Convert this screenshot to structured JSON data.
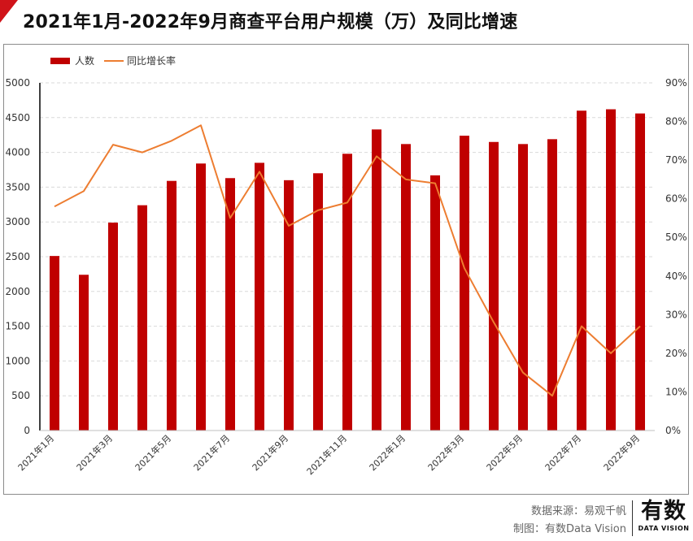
{
  "title": "2021年1月-2022年9月商查平台用户规模（万）及同比增速",
  "chart_data": {
    "type": "bar+line",
    "title": "2021年1月-2022年9月商查平台用户规模（万）及同比增速",
    "categories": [
      "2021年1月",
      "2021年2月",
      "2021年3月",
      "2021年4月",
      "2021年5月",
      "2021年6月",
      "2021年7月",
      "2021年8月",
      "2021年9月",
      "2021年10月",
      "2021年11月",
      "2021年12月",
      "2022年1月",
      "2022年2月",
      "2022年3月",
      "2022年4月",
      "2022年5月",
      "2022年6月",
      "2022年7月",
      "2022年8月",
      "2022年9月"
    ],
    "x_tick_labels": [
      "2021年1月",
      "2021年3月",
      "2021年5月",
      "2021年7月",
      "2021年9月",
      "2021年11月",
      "2022年1月",
      "2022年3月",
      "2022年5月",
      "2022年7月",
      "2022年9月"
    ],
    "series": [
      {
        "name": "人数",
        "type": "bar",
        "axis": "left",
        "color": "#c00000",
        "values": [
          2510,
          2240,
          2990,
          3240,
          3590,
          3840,
          3630,
          3850,
          3600,
          3700,
          3980,
          4330,
          4120,
          3670,
          4240,
          4150,
          4120,
          4190,
          4600,
          4620,
          4560
        ]
      },
      {
        "name": "同比增长率",
        "type": "line",
        "axis": "right",
        "color": "#ed7d31",
        "values": [
          58,
          62,
          74,
          72,
          75,
          79,
          55,
          67,
          53,
          57,
          59,
          71,
          65,
          64,
          42,
          28,
          15,
          9,
          27,
          20,
          27
        ]
      }
    ],
    "y_left": {
      "min": 0,
      "max": 5000,
      "step": 500,
      "tick_labels": [
        "0",
        "500",
        "1000",
        "1500",
        "2000",
        "2500",
        "3000",
        "3500",
        "4000",
        "4500",
        "5000"
      ]
    },
    "y_right": {
      "min": 0,
      "max": 90,
      "step": 10,
      "tick_labels": [
        "0%",
        "10%",
        "20%",
        "30%",
        "40%",
        "50%",
        "60%",
        "70%",
        "80%",
        "90%"
      ]
    },
    "legend": {
      "position": "top-left",
      "entries": [
        "人数",
        "同比增长率"
      ]
    },
    "grid": "horizontal-dashed"
  },
  "footer": {
    "source": "数据来源：易观千帆",
    "credit": "制图：有数Data Vision",
    "logo_main": "有数",
    "logo_sub": "DATA VISION"
  },
  "colors": {
    "accent": "#d0141a",
    "bar": "#c00000",
    "line": "#ed7d31",
    "grid": "#d9d9d9"
  }
}
